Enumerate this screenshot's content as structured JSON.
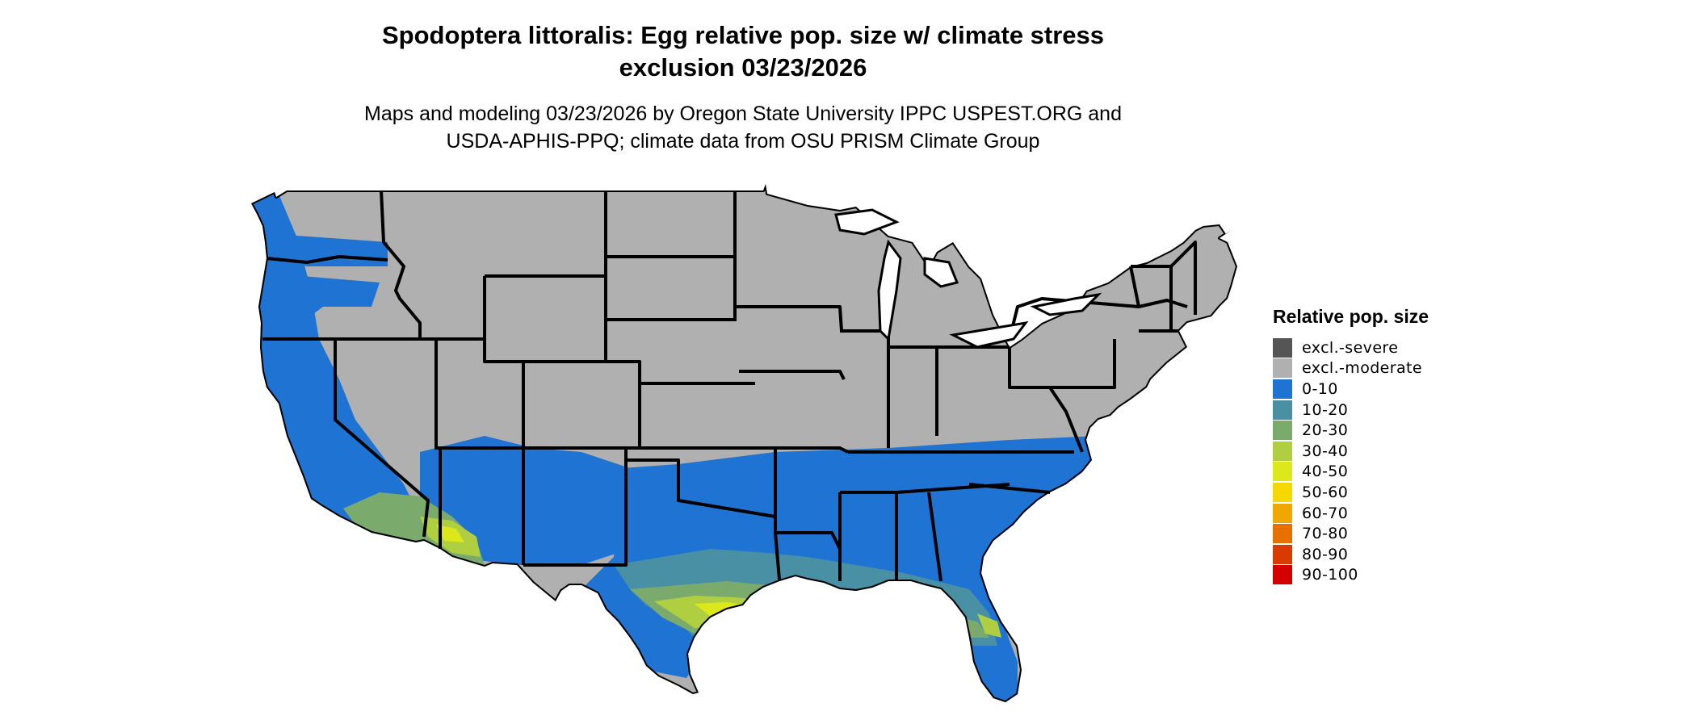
{
  "header": {
    "title_line1": "Spodoptera littoralis: Egg relative pop. size w/ climate stress",
    "title_line2": "exclusion 03/23/2026",
    "subtitle_line1": "Maps and modeling 03/23/2026 by Oregon State University IPPC USPEST.ORG and",
    "subtitle_line2": "USDA-APHIS-PPQ; climate data from OSU PRISM Climate Group"
  },
  "map": {
    "region": "Contiguous United States",
    "colors": {
      "excluded_moderate": "#b0b0b0",
      "excluded_severe": "#555555",
      "low": "#1f73d2",
      "band_10_20": "#4a90a4",
      "band_20_30": "#7aab6c",
      "band_30_40": "#b0cf40",
      "band_40_50": "#dce81a",
      "border": "#000000"
    }
  },
  "legend": {
    "title": "Relative pop. size",
    "items": [
      {
        "label": "excl.-severe",
        "color": "#555555"
      },
      {
        "label": "excl.-moderate",
        "color": "#b0b0b0"
      },
      {
        "label": "0-10",
        "color": "#1f73d2"
      },
      {
        "label": "10-20",
        "color": "#4a90a4"
      },
      {
        "label": "20-30",
        "color": "#7aab6c"
      },
      {
        "label": "30-40",
        "color": "#b0cf40"
      },
      {
        "label": "40-50",
        "color": "#dce81a"
      },
      {
        "label": "50-60",
        "color": "#f5d800"
      },
      {
        "label": "60-70",
        "color": "#f0a800"
      },
      {
        "label": "70-80",
        "color": "#e87000"
      },
      {
        "label": "80-90",
        "color": "#d83a00"
      },
      {
        "label": "90-100",
        "color": "#d40000"
      }
    ]
  }
}
